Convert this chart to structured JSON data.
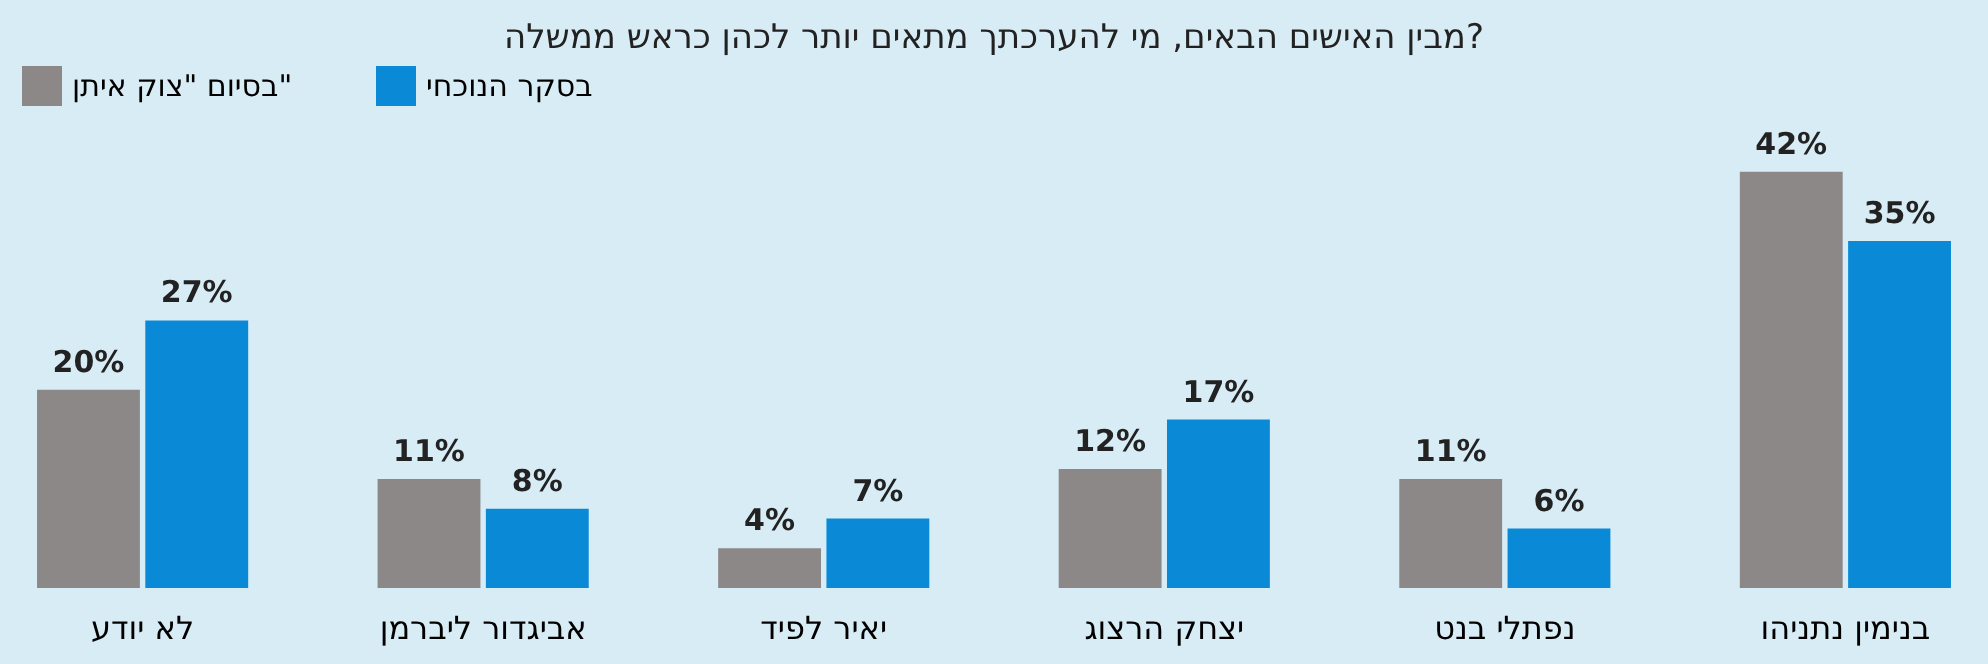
{
  "chart_data": {
    "type": "bar",
    "title": "מבין האישים הבאים, מי להערכתך מתאים יותר לכהן כראש ממשלה?",
    "categories": [
      "לא יודע",
      "אביגדור ליברמן",
      "יאיר לפיד",
      "יצחק הרצוג",
      "נפתלי בנט",
      "בנימין נתניהו"
    ],
    "series": [
      {
        "name": "בסיום \"צוק איתן\"",
        "color": "#8c8888",
        "values": [
          20,
          11,
          4,
          12,
          11,
          42
        ],
        "value_labels": [
          "20%",
          "11%",
          "4%",
          "12%",
          "11%",
          "42%"
        ]
      },
      {
        "name": "בסקר הנוכחי",
        "color": "#0a8ad6",
        "values": [
          27,
          8,
          7,
          17,
          6,
          35
        ],
        "value_labels": [
          "27%",
          "8%",
          "7%",
          "17%",
          "6%",
          "35%"
        ]
      }
    ],
    "legend": "top",
    "grid": false
  }
}
